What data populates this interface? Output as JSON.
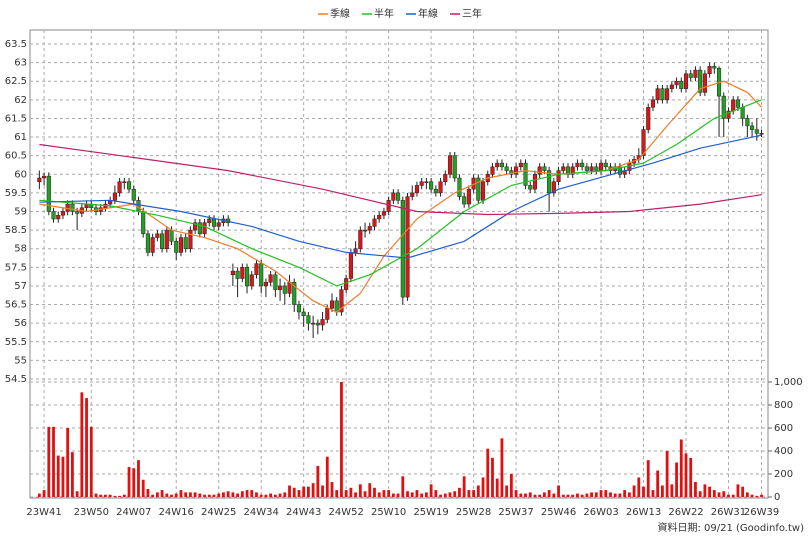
{
  "chart_data": {
    "type": "candlestick",
    "categories": [
      null,
      "23W41",
      null,
      null,
      null,
      null,
      null,
      null,
      null,
      null,
      null,
      "23W50",
      null,
      null,
      null,
      null,
      null,
      null,
      null,
      null,
      "24W07",
      null,
      null,
      null,
      null,
      null,
      null,
      null,
      null,
      "24W16",
      null,
      null,
      null,
      null,
      null,
      null,
      null,
      null,
      "24W25",
      null,
      null,
      null,
      null,
      null,
      null,
      null,
      null,
      "24W34",
      null,
      null,
      null,
      null,
      null,
      null,
      null,
      null,
      "24W43",
      null,
      null,
      null,
      null,
      null,
      null,
      null,
      null,
      "24W52",
      null,
      null,
      null,
      null,
      null,
      null,
      null,
      null,
      "25W10",
      null,
      null,
      null,
      null,
      null,
      null,
      null,
      null,
      "25W19",
      null,
      null,
      null,
      null,
      null,
      null,
      null,
      null,
      "25W28",
      null,
      null,
      null,
      null,
      null,
      null,
      null,
      null,
      "25W37",
      null,
      null,
      null,
      null,
      null,
      null,
      null,
      null,
      "25W46",
      null,
      null,
      null,
      null,
      null,
      null,
      null,
      null,
      "26W03",
      null,
      null,
      null,
      null,
      null,
      null,
      null,
      null,
      "26W13",
      null,
      null,
      null,
      null,
      null,
      null,
      null,
      null,
      "26W22",
      null,
      null,
      null,
      null,
      null,
      null,
      null,
      null,
      "26W31",
      null,
      null,
      null,
      null,
      null,
      null,
      "26W39"
    ],
    "candles": [
      [
        59.8,
        60.1,
        59.6,
        59.9
      ],
      [
        59.9,
        60.05,
        59.7,
        59.95
      ],
      [
        59.95,
        60.05,
        58.9,
        59.0
      ],
      [
        59.0,
        59.1,
        58.7,
        58.8
      ],
      [
        58.8,
        59.0,
        58.7,
        58.9
      ],
      [
        58.9,
        59.1,
        58.8,
        59.0
      ],
      [
        59.0,
        59.3,
        58.9,
        59.2
      ],
      [
        59.2,
        59.3,
        58.9,
        59.0
      ],
      [
        59.0,
        59.1,
        58.5,
        58.95
      ],
      [
        58.95,
        59.2,
        58.85,
        59.1
      ],
      [
        59.1,
        59.3,
        59.0,
        59.2
      ],
      [
        59.2,
        59.3,
        59.0,
        59.1
      ],
      [
        59.1,
        59.2,
        58.9,
        59.0
      ],
      [
        59.0,
        59.2,
        58.9,
        59.1
      ],
      [
        59.1,
        59.3,
        59.0,
        59.2
      ],
      [
        59.2,
        59.4,
        59.1,
        59.3
      ],
      [
        59.3,
        59.7,
        59.2,
        59.5
      ],
      [
        59.5,
        59.9,
        59.4,
        59.8
      ],
      [
        59.8,
        59.9,
        59.6,
        59.8
      ],
      [
        59.8,
        59.9,
        59.5,
        59.6
      ],
      [
        59.6,
        59.7,
        59.2,
        59.3
      ],
      [
        59.3,
        59.4,
        58.9,
        59.0
      ],
      [
        59.0,
        59.1,
        58.3,
        58.4
      ],
      [
        58.4,
        58.5,
        57.8,
        57.9
      ],
      [
        57.9,
        58.4,
        57.8,
        58.3
      ],
      [
        58.3,
        58.5,
        58.2,
        58.4
      ],
      [
        58.4,
        58.5,
        57.9,
        58.0
      ],
      [
        58.0,
        58.6,
        57.9,
        58.5
      ],
      [
        58.5,
        58.6,
        58.1,
        58.2
      ],
      [
        58.2,
        58.3,
        57.7,
        57.9
      ],
      [
        57.9,
        58.4,
        57.8,
        58.3
      ],
      [
        58.3,
        58.4,
        57.9,
        58.0
      ],
      [
        58.0,
        58.6,
        57.9,
        58.5
      ],
      [
        58.5,
        58.8,
        58.4,
        58.7
      ],
      [
        58.7,
        58.8,
        58.3,
        58.4
      ],
      [
        58.4,
        58.8,
        58.3,
        58.7
      ],
      [
        58.7,
        58.9,
        58.6,
        58.8
      ],
      [
        58.8,
        58.9,
        58.5,
        58.6
      ],
      [
        58.6,
        58.8,
        58.5,
        58.7
      ],
      [
        58.7,
        58.9,
        58.6,
        58.8
      ],
      [
        58.8,
        58.9,
        58.6,
        58.7
      ],
      [
        57.3,
        57.6,
        57.0,
        57.4
      ],
      [
        57.4,
        57.5,
        56.7,
        57.2
      ],
      [
        57.2,
        57.6,
        57.1,
        57.5
      ],
      [
        57.5,
        57.6,
        56.8,
        57.0
      ],
      [
        57.0,
        57.4,
        56.9,
        57.3
      ],
      [
        57.3,
        57.7,
        57.2,
        57.6
      ],
      [
        57.6,
        57.7,
        56.8,
        57.0
      ],
      [
        57.0,
        57.2,
        56.7,
        57.1
      ],
      [
        57.1,
        57.4,
        57.0,
        57.3
      ],
      [
        57.3,
        57.4,
        56.7,
        56.9
      ],
      [
        56.9,
        57.2,
        56.6,
        57.0
      ],
      [
        57.0,
        57.1,
        56.5,
        56.8
      ],
      [
        56.8,
        57.3,
        56.7,
        57.1
      ],
      [
        57.1,
        57.2,
        56.3,
        56.5
      ],
      [
        56.5,
        56.6,
        56.1,
        56.3
      ],
      [
        56.3,
        56.4,
        55.9,
        56.2
      ],
      [
        56.2,
        56.3,
        55.8,
        56.0
      ],
      [
        56.0,
        56.2,
        55.6,
        56.0
      ],
      [
        56.0,
        56.1,
        55.7,
        55.95
      ],
      [
        55.95,
        56.3,
        55.8,
        56.1
      ],
      [
        56.1,
        56.5,
        56.0,
        56.4
      ],
      [
        56.4,
        56.8,
        56.3,
        56.6
      ],
      [
        56.6,
        56.7,
        56.2,
        56.3
      ],
      [
        56.3,
        57.0,
        56.2,
        56.9
      ],
      [
        56.9,
        57.3,
        56.8,
        57.2
      ],
      [
        57.2,
        58.0,
        57.1,
        57.9
      ],
      [
        57.9,
        58.2,
        57.8,
        58.0
      ],
      [
        58.0,
        58.6,
        57.9,
        58.5
      ],
      [
        58.5,
        58.7,
        58.3,
        58.5
      ],
      [
        58.5,
        58.7,
        58.4,
        58.6
      ],
      [
        58.6,
        58.9,
        58.5,
        58.8
      ],
      [
        58.8,
        59.0,
        58.7,
        58.9
      ],
      [
        58.9,
        59.1,
        58.8,
        59.0
      ],
      [
        59.0,
        59.4,
        58.9,
        59.3
      ],
      [
        59.3,
        59.6,
        59.2,
        59.5
      ],
      [
        59.5,
        59.6,
        59.2,
        59.3
      ],
      [
        59.3,
        59.4,
        56.5,
        56.7
      ],
      [
        56.7,
        59.5,
        56.6,
        59.4
      ],
      [
        59.4,
        59.7,
        59.3,
        59.5
      ],
      [
        59.5,
        59.8,
        59.4,
        59.7
      ],
      [
        59.7,
        59.9,
        59.6,
        59.8
      ],
      [
        59.8,
        59.9,
        59.6,
        59.8
      ],
      [
        59.8,
        59.9,
        59.5,
        59.6
      ],
      [
        59.6,
        59.7,
        59.4,
        59.5
      ],
      [
        59.5,
        59.9,
        59.4,
        59.8
      ],
      [
        59.8,
        60.1,
        59.7,
        60.0
      ],
      [
        60.0,
        60.6,
        59.9,
        60.5
      ],
      [
        60.5,
        60.6,
        59.8,
        59.9
      ],
      [
        59.9,
        60.0,
        59.3,
        59.4
      ],
      [
        59.4,
        59.5,
        59.1,
        59.2
      ],
      [
        59.2,
        59.7,
        59.1,
        59.6
      ],
      [
        59.6,
        60.0,
        59.5,
        59.9
      ],
      [
        59.9,
        60.0,
        59.2,
        59.3
      ],
      [
        59.3,
        59.9,
        59.2,
        59.8
      ],
      [
        59.8,
        60.1,
        59.7,
        60.0
      ],
      [
        60.0,
        60.3,
        59.9,
        60.2
      ],
      [
        60.2,
        60.4,
        60.1,
        60.3
      ],
      [
        60.3,
        60.4,
        60.1,
        60.2
      ],
      [
        60.2,
        60.3,
        60.0,
        60.1
      ],
      [
        60.1,
        60.2,
        59.9,
        60.0
      ],
      [
        60.0,
        60.3,
        59.9,
        60.2
      ],
      [
        60.2,
        60.4,
        60.1,
        60.3
      ],
      [
        60.3,
        60.4,
        59.6,
        59.7
      ],
      [
        59.7,
        59.8,
        59.5,
        59.6
      ],
      [
        59.6,
        60.1,
        59.5,
        60.0
      ],
      [
        60.0,
        60.3,
        59.9,
        60.2
      ],
      [
        60.2,
        60.3,
        60.0,
        60.1
      ],
      [
        60.1,
        60.2,
        59.0,
        59.5
      ],
      [
        59.5,
        59.9,
        59.4,
        59.8
      ],
      [
        59.8,
        60.2,
        59.7,
        60.1
      ],
      [
        60.1,
        60.3,
        60.0,
        60.2
      ],
      [
        60.2,
        60.3,
        59.9,
        60.0
      ],
      [
        60.0,
        60.3,
        59.9,
        60.2
      ],
      [
        60.2,
        60.4,
        60.1,
        60.3
      ],
      [
        60.3,
        60.4,
        60.1,
        60.2
      ],
      [
        60.2,
        60.3,
        60.0,
        60.1
      ],
      [
        60.1,
        60.3,
        60.0,
        60.2
      ],
      [
        60.2,
        60.3,
        60.0,
        60.1
      ],
      [
        60.1,
        60.4,
        60.0,
        60.3
      ],
      [
        60.3,
        60.4,
        60.1,
        60.2
      ],
      [
        60.2,
        60.3,
        60.0,
        60.1
      ],
      [
        60.1,
        60.3,
        60.0,
        60.2
      ],
      [
        60.2,
        60.3,
        59.9,
        60.0
      ],
      [
        60.0,
        60.2,
        59.9,
        60.1
      ],
      [
        60.1,
        60.4,
        60.0,
        60.3
      ],
      [
        60.3,
        60.5,
        60.2,
        60.4
      ],
      [
        60.4,
        60.7,
        60.3,
        60.5
      ],
      [
        60.5,
        61.3,
        60.4,
        61.2
      ],
      [
        61.2,
        61.9,
        61.1,
        61.8
      ],
      [
        61.8,
        62.1,
        61.7,
        62.0
      ],
      [
        62.0,
        62.4,
        61.9,
        62.3
      ],
      [
        62.3,
        62.4,
        61.9,
        62.0
      ],
      [
        62.0,
        62.4,
        61.9,
        62.3
      ],
      [
        62.3,
        62.5,
        62.2,
        62.4
      ],
      [
        62.4,
        62.6,
        62.3,
        62.5
      ],
      [
        62.5,
        62.6,
        62.2,
        62.3
      ],
      [
        62.3,
        62.8,
        62.2,
        62.7
      ],
      [
        62.7,
        62.8,
        62.5,
        62.6
      ],
      [
        62.6,
        62.9,
        62.5,
        62.8
      ],
      [
        62.8,
        62.9,
        62.1,
        62.2
      ],
      [
        62.2,
        62.8,
        62.1,
        62.7
      ],
      [
        62.7,
        63.0,
        62.6,
        62.9
      ],
      [
        62.9,
        63.0,
        62.7,
        62.85
      ],
      [
        62.85,
        62.9,
        61.0,
        62.1
      ],
      [
        62.1,
        62.2,
        61.0,
        61.5
      ],
      [
        61.5,
        61.8,
        61.4,
        61.7
      ],
      [
        61.7,
        62.1,
        61.6,
        62.0
      ],
      [
        62.0,
        62.1,
        61.7,
        61.8
      ],
      [
        61.8,
        61.9,
        61.3,
        61.5
      ],
      [
        61.5,
        61.6,
        61.0,
        61.3
      ],
      [
        61.3,
        61.4,
        61.0,
        61.2
      ],
      [
        61.2,
        61.5,
        60.9,
        61.1
      ],
      [
        61.1,
        61.2,
        61.0,
        61.1
      ]
    ],
    "up_color": "#d81818",
    "down_color": "#22a022",
    "ylim": [
      54.5,
      63.5
    ],
    "yticks": [
      54.5,
      55,
      55.5,
      56,
      56.5,
      57,
      57.5,
      58,
      58.5,
      59,
      59.5,
      60,
      60.5,
      61,
      61.5,
      62,
      62.5,
      63,
      63.5
    ],
    "lines": [
      {
        "name": "季線",
        "color": "#f07c2a",
        "x": [
          0,
          10,
          20,
          28,
          35,
          42,
          50,
          58,
          63,
          68,
          73,
          80,
          88,
          95,
          103,
          110,
          120,
          127,
          133,
          140,
          145,
          150,
          153
        ],
        "values": [
          59.2,
          59.0,
          59.2,
          58.5,
          58.3,
          58.0,
          57.4,
          56.6,
          56.3,
          56.8,
          57.8,
          58.8,
          59.5,
          59.9,
          60.1,
          60.0,
          60.1,
          60.4,
          61.3,
          62.3,
          62.5,
          62.2,
          61.8
        ]
      },
      {
        "name": "半年",
        "color": "#22c022",
        "x": [
          0,
          15,
          25,
          35,
          45,
          55,
          63,
          70,
          80,
          90,
          100,
          110,
          120,
          128,
          135,
          143,
          153
        ],
        "values": [
          59.3,
          59.15,
          58.9,
          58.6,
          58.0,
          57.5,
          57.0,
          57.3,
          58.0,
          59.0,
          59.7,
          60.0,
          60.1,
          60.3,
          60.8,
          61.5,
          62.0
        ]
      },
      {
        "name": "年線",
        "color": "#1f5fd0",
        "x": [
          0,
          15,
          30,
          45,
          55,
          65,
          78,
          90,
          100,
          110,
          120,
          130,
          140,
          153
        ],
        "values": [
          59.25,
          59.3,
          59.0,
          58.6,
          58.2,
          57.9,
          57.75,
          58.2,
          59.0,
          59.6,
          59.95,
          60.3,
          60.7,
          61.05
        ]
      },
      {
        "name": "三年",
        "color": "#c0206a",
        "x": [
          0,
          20,
          40,
          60,
          80,
          95,
          110,
          125,
          140,
          153
        ],
        "values": [
          60.8,
          60.45,
          60.1,
          59.6,
          59.0,
          58.92,
          58.95,
          59.0,
          59.2,
          59.45
        ]
      }
    ],
    "volume": {
      "color": "#e01010",
      "values": [
        30,
        60,
        610,
        610,
        360,
        350,
        600,
        390,
        50,
        910,
        860,
        610,
        30,
        20,
        20,
        20,
        10,
        10,
        20,
        260,
        250,
        320,
        150,
        70,
        20,
        40,
        60,
        30,
        20,
        30,
        60,
        40,
        40,
        40,
        30,
        20,
        20,
        20,
        30,
        40,
        50,
        40,
        30,
        50,
        60,
        60,
        40,
        20,
        20,
        30,
        20,
        30,
        40,
        100,
        80,
        60,
        90,
        90,
        120,
        270,
        100,
        350,
        130,
        60,
        1000,
        60,
        80,
        40,
        110,
        50,
        120,
        80,
        40,
        60,
        60,
        30,
        30,
        180,
        50,
        40,
        60,
        30,
        40,
        110,
        60,
        20,
        30,
        40,
        50,
        80,
        180,
        60,
        60,
        100,
        170,
        420,
        340,
        160,
        510,
        100,
        200,
        60,
        30,
        30,
        40,
        20,
        20,
        40,
        60,
        30,
        100,
        20,
        20,
        20,
        30,
        20,
        30,
        40,
        40,
        60,
        60,
        40,
        30,
        30,
        60,
        40,
        100,
        170,
        90,
        320,
        60,
        230,
        100,
        400,
        110,
        300,
        500,
        380,
        340,
        130,
        50,
        110,
        90,
        60,
        40,
        50,
        20,
        20,
        110,
        90,
        40,
        20,
        10,
        20
      ],
      "ylim": [
        0,
        1000
      ],
      "yticks": [
        0,
        200,
        400,
        600,
        800,
        {
          "value": 1000,
          "label": "1,000"
        }
      ]
    },
    "grid": true,
    "note": "資料日期: 09/21  (Goodinfo.tw)"
  }
}
